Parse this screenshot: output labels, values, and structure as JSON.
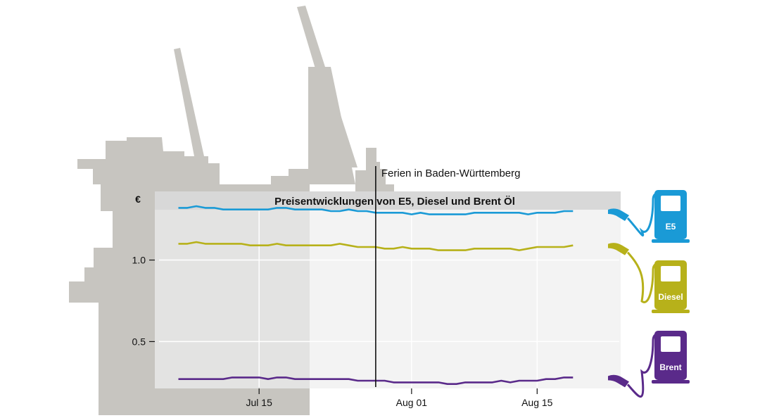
{
  "colors": {
    "e5": "#1a9ad6",
    "diesel": "#b7b11a",
    "brent": "#5a2a8a",
    "silhouette": "#c7c5c0",
    "panel": "#eeeeee",
    "title_bar": "#d8d8d8"
  },
  "chart_data": {
    "type": "line",
    "title": "Preisentwicklungen von E5, Diesel und Brent Öl",
    "ylabel": "€",
    "ylim": [
      0.23,
      1.3
    ],
    "xlim": [
      "2022-07-04",
      "2022-08-24"
    ],
    "y_ticks": [
      {
        "value": 1.0,
        "label": "1.0"
      },
      {
        "value": 0.5,
        "label": "0.5"
      }
    ],
    "x_ticks": [
      {
        "date": "2022-07-15",
        "label": "Jul 15"
      },
      {
        "date": "2022-08-01",
        "label": "Aug 01"
      },
      {
        "date": "2022-08-15",
        "label": "Aug 15"
      }
    ],
    "grid": true,
    "annotation": {
      "date": "2022-07-28",
      "label": "Ferien in Baden-Württemberg"
    },
    "x": [
      "2022-07-06",
      "2022-07-07",
      "2022-07-08",
      "2022-07-09",
      "2022-07-10",
      "2022-07-11",
      "2022-07-12",
      "2022-07-13",
      "2022-07-14",
      "2022-07-15",
      "2022-07-16",
      "2022-07-17",
      "2022-07-18",
      "2022-07-19",
      "2022-07-20",
      "2022-07-21",
      "2022-07-22",
      "2022-07-23",
      "2022-07-24",
      "2022-07-25",
      "2022-07-26",
      "2022-07-27",
      "2022-07-28",
      "2022-07-29",
      "2022-07-30",
      "2022-07-31",
      "2022-08-01",
      "2022-08-02",
      "2022-08-03",
      "2022-08-04",
      "2022-08-05",
      "2022-08-06",
      "2022-08-07",
      "2022-08-08",
      "2022-08-09",
      "2022-08-10",
      "2022-08-11",
      "2022-08-12",
      "2022-08-13",
      "2022-08-14",
      "2022-08-15",
      "2022-08-16",
      "2022-08-17",
      "2022-08-18",
      "2022-08-19"
    ],
    "series": [
      {
        "name": "E5",
        "color_key": "e5",
        "values": [
          1.32,
          1.32,
          1.33,
          1.32,
          1.32,
          1.31,
          1.31,
          1.31,
          1.31,
          1.31,
          1.31,
          1.32,
          1.32,
          1.31,
          1.31,
          1.31,
          1.31,
          1.3,
          1.3,
          1.31,
          1.3,
          1.3,
          1.29,
          1.29,
          1.29,
          1.29,
          1.28,
          1.29,
          1.28,
          1.28,
          1.28,
          1.28,
          1.28,
          1.29,
          1.29,
          1.29,
          1.29,
          1.29,
          1.29,
          1.28,
          1.29,
          1.29,
          1.29,
          1.3,
          1.3
        ]
      },
      {
        "name": "Diesel",
        "color_key": "diesel",
        "values": [
          1.1,
          1.1,
          1.11,
          1.1,
          1.1,
          1.1,
          1.1,
          1.1,
          1.09,
          1.09,
          1.09,
          1.1,
          1.09,
          1.09,
          1.09,
          1.09,
          1.09,
          1.09,
          1.1,
          1.09,
          1.08,
          1.08,
          1.08,
          1.07,
          1.07,
          1.08,
          1.07,
          1.07,
          1.07,
          1.06,
          1.06,
          1.06,
          1.06,
          1.07,
          1.07,
          1.07,
          1.07,
          1.07,
          1.06,
          1.07,
          1.08,
          1.08,
          1.08,
          1.08,
          1.09
        ]
      },
      {
        "name": "Brent",
        "color_key": "brent",
        "values": [
          0.27,
          0.27,
          0.27,
          0.27,
          0.27,
          0.27,
          0.28,
          0.28,
          0.28,
          0.28,
          0.27,
          0.28,
          0.28,
          0.27,
          0.27,
          0.27,
          0.27,
          0.27,
          0.27,
          0.27,
          0.26,
          0.26,
          0.26,
          0.26,
          0.25,
          0.25,
          0.25,
          0.25,
          0.25,
          0.25,
          0.24,
          0.24,
          0.25,
          0.25,
          0.25,
          0.25,
          0.26,
          0.25,
          0.26,
          0.26,
          0.26,
          0.27,
          0.27,
          0.28,
          0.28
        ]
      }
    ]
  }
}
